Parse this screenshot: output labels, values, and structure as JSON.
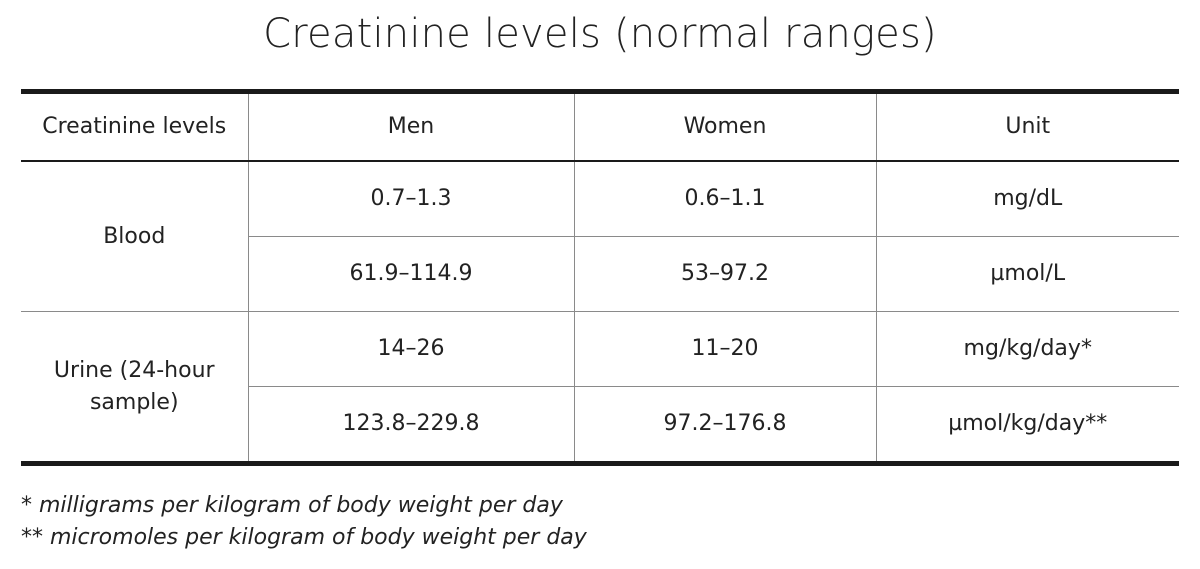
{
  "title": "Creatinine levels (normal ranges)",
  "table": {
    "headers": [
      "Creatinine levels",
      "Men",
      "Women",
      "Unit"
    ],
    "groups": [
      {
        "label": "Blood",
        "rows": [
          {
            "men": "0.7–1.3",
            "women": "0.6–1.1",
            "unit": "mg/dL"
          },
          {
            "men": "61.9–114.9",
            "women": "53–97.2",
            "unit": "µmol/L"
          }
        ]
      },
      {
        "label": "Urine (24-hour sample)",
        "rows": [
          {
            "men": "14–26",
            "women": "11–20",
            "unit": "mg/kg/day*"
          },
          {
            "men": "123.8–229.8",
            "women": "97.2–176.8",
            "unit": "µmol/kg/day**"
          }
        ]
      }
    ]
  },
  "footnotes": [
    "* milligrams per kilogram of body weight per day",
    "** micromoles per kilogram of body weight per day"
  ]
}
